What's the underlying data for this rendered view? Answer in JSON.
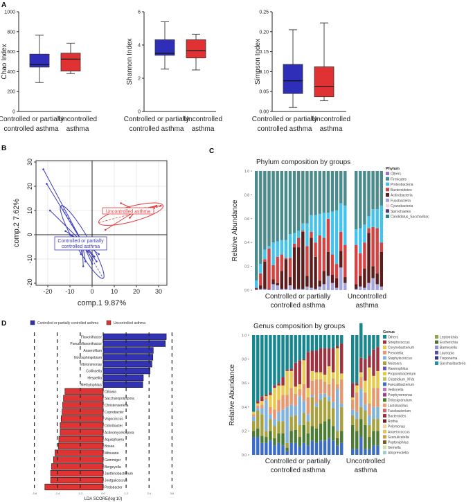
{
  "panel_letters": [
    "A",
    "B",
    "C",
    "D"
  ],
  "chart_data": [
    {
      "id": "chao",
      "type": "boxplot",
      "ylabel": "Chao Index",
      "ylim": [
        0,
        1000
      ],
      "yticks": [
        "0",
        "200",
        "400",
        "600",
        "800",
        "1000"
      ],
      "yticks_values": [
        0,
        200,
        400,
        600,
        800,
        1000
      ],
      "categories": [
        [
          "Controlled or partially",
          "controlled asthma"
        ],
        [
          "Uncontrolled",
          "asthma"
        ]
      ],
      "boxes": [
        {
          "min": 290,
          "q1": 445,
          "median": 470,
          "q3": 575,
          "max": 765,
          "color": "#2e2eb8"
        },
        {
          "min": 380,
          "q1": 405,
          "median": 525,
          "q3": 585,
          "max": 685,
          "color": "#e03232"
        }
      ]
    },
    {
      "id": "shannon",
      "type": "boxplot",
      "ylabel": "Shannon Index",
      "ylim": [
        0,
        6
      ],
      "yticks": [
        "0",
        "2",
        "4",
        "6"
      ],
      "yticks_values": [
        0,
        2,
        4,
        6
      ],
      "categories": [
        [
          "Controlled or partially",
          "controlled asthma"
        ],
        [
          "Uncontrolled",
          "asthma"
        ]
      ],
      "boxes": [
        {
          "min": 2.55,
          "q1": 3.38,
          "median": 3.5,
          "q3": 4.32,
          "max": 5.4,
          "color": "#2e2eb8"
        },
        {
          "min": 2.5,
          "q1": 3.22,
          "median": 3.65,
          "q3": 4.32,
          "max": 4.65,
          "color": "#e03232"
        }
      ]
    },
    {
      "id": "simpson",
      "type": "boxplot",
      "ylabel": "Simpson Index",
      "ylim": [
        0,
        0.25
      ],
      "yticks": [
        "0.00",
        "0.05",
        "0.10",
        "0.15",
        "0.20",
        "0.25"
      ],
      "yticks_values": [
        0,
        0.05,
        0.1,
        0.15,
        0.2,
        0.25
      ],
      "categories": [
        [
          "Controlled or partially",
          "controlled asthma"
        ],
        [
          "Uncontrolled",
          "asthma"
        ]
      ],
      "boxes": [
        {
          "min": 0.01,
          "q1": 0.045,
          "median": 0.077,
          "q3": 0.118,
          "max": 0.205,
          "color": "#2e2eb8"
        },
        {
          "min": 0.027,
          "q1": 0.037,
          "median": 0.063,
          "q3": 0.112,
          "max": 0.222,
          "color": "#e03232"
        }
      ]
    },
    {
      "id": "pca",
      "type": "scatter",
      "xlabel": "comp.1 9.87%",
      "ylabel": "comp.2 7.62%",
      "xlim": [
        -26,
        34
      ],
      "ylim": [
        -21,
        31
      ],
      "xticks": [
        "-20",
        "-10",
        "0",
        "10",
        "20",
        "30"
      ],
      "xticks_values": [
        -20,
        -10,
        0,
        10,
        20,
        30
      ],
      "yticks": [
        "-20",
        "-10",
        "0",
        "10",
        "20",
        "30"
      ],
      "yticks_values": [
        -20,
        -10,
        0,
        10,
        20,
        30
      ],
      "grid": true,
      "groups": [
        {
          "name": "Controlled or partially controlled asthma",
          "label_lines": [
            "Controlled or partially",
            "controlled asthma"
          ],
          "color": "#3a3ac0",
          "centroid": [
            -4.5,
            -3
          ],
          "points": [
            [
              -22,
              27
            ],
            [
              -20.5,
              21
            ],
            [
              -19,
              10
            ],
            [
              -12,
              1.5
            ],
            [
              -10,
              0
            ],
            [
              -8,
              -4
            ],
            [
              -6,
              -5
            ],
            [
              -5,
              -8
            ],
            [
              -3,
              -11
            ],
            [
              -2,
              -7
            ],
            [
              -1,
              -6
            ],
            [
              0,
              -10
            ],
            [
              0,
              -12
            ],
            [
              1,
              -9
            ],
            [
              2,
              -11
            ],
            [
              3,
              -8
            ],
            [
              -4,
              -13
            ],
            [
              -13,
              -2
            ]
          ]
        },
        {
          "name": "Uncontrolled asthma",
          "label_lines": [
            "Uncontrolled asthma"
          ],
          "color": "#e03a3a",
          "centroid": [
            20,
            10
          ],
          "points": [
            [
              6,
              2
            ],
            [
              10,
              9
            ],
            [
              12,
              9
            ],
            [
              13,
              13
            ],
            [
              17,
              7
            ],
            [
              24,
              11
            ],
            [
              28,
              11
            ],
            [
              29,
              12
            ],
            [
              31,
              12
            ]
          ]
        }
      ]
    },
    {
      "id": "phylum",
      "type": "stacked-bar",
      "title": "Phylum composition by groups",
      "ylabel": "Relative Abundance",
      "ylim": [
        0,
        1
      ],
      "yticks": [
        "0.0",
        "0.2",
        "0.4",
        "0.6",
        "0.8",
        "1.0"
      ],
      "yticks_values": [
        0,
        0.2,
        0.4,
        0.6,
        0.8,
        1.0
      ],
      "group_labels": [
        [
          "Controlled or partially",
          "controlled asthma"
        ],
        [
          "Uncontrolled",
          "asthma"
        ]
      ],
      "group_sizes": [
        22,
        7
      ],
      "legend_title": "Phylum",
      "legend": [
        {
          "name": "Others",
          "color": "#9b72dc"
        },
        {
          "name": "Firmicutes",
          "color": "#4b8b8b"
        },
        {
          "name": "Proteobacteria",
          "color": "#44c4ec"
        },
        {
          "name": "Bacteroidetes",
          "color": "#d24444"
        },
        {
          "name": "Actinobacteria",
          "color": "#5c1c1c"
        },
        {
          "name": "Fusobacteria",
          "color": "#a4a4dc"
        },
        {
          "name": "Cyanobacteria",
          "color": "#f8d2e0"
        },
        {
          "name": "Spirochaetes",
          "color": "#4c3c92"
        },
        {
          "name": "Candidatus_Saccharibac",
          "color": "#218292"
        }
      ],
      "series": [
        {
          "name": "Fusobacteria",
          "values": [
            0.005,
            0.01,
            0.01,
            0.005,
            0.05,
            0.04,
            0.01,
            0.01,
            0.04,
            0.01,
            0.01,
            0.01,
            0.03,
            0.02,
            0.01,
            0.03,
            0.05,
            0.12,
            0.06,
            0.02,
            0.19,
            0.06,
            0.01,
            0.03,
            0.02,
            0.06,
            0.1,
            0.05,
            0.03
          ]
        },
        {
          "name": "Actinobacteria",
          "values": [
            0.01,
            0.03,
            0.23,
            0.005,
            0.04,
            0.02,
            0.15,
            0.25,
            0.07,
            0.35,
            0.35,
            0.48,
            0.09,
            0.42,
            0.27,
            0.05,
            0.11,
            0.2,
            0.07,
            0.08,
            0.14,
            0.05,
            0.04,
            0.09,
            0.16,
            0.42,
            0.1,
            0.09,
            0.29
          ]
        },
        {
          "name": "Bacteroidetes",
          "values": [
            0.005,
            0.1,
            0.02,
            0.34,
            0.12,
            0.22,
            0.14,
            0.01,
            0.16,
            0.03,
            0.08,
            0.01,
            0.25,
            0.05,
            0.12,
            0.38,
            0.28,
            0.28,
            0.17,
            0.12,
            0.16,
            0.27,
            0.33,
            0.19,
            0.22,
            0.04,
            0.33,
            0.38,
            0.08
          ]
        },
        {
          "name": "Proteobacteria",
          "values": [
            0.06,
            0.08,
            0.08,
            0.02,
            0.19,
            0.13,
            0.12,
            0.15,
            0.2,
            0.09,
            0.06,
            0.06,
            0.19,
            0.14,
            0.23,
            0.18,
            0.21,
            0.05,
            0.36,
            0.45,
            0.24,
            0.33,
            0.13,
            0.21,
            0.15,
            0.1,
            0.15,
            0.16,
            0.31
          ]
        },
        {
          "name": "Firmicutes",
          "values": [
            0.92,
            0.78,
            0.66,
            0.63,
            0.6,
            0.59,
            0.58,
            0.58,
            0.53,
            0.52,
            0.5,
            0.44,
            0.44,
            0.37,
            0.37,
            0.36,
            0.35,
            0.35,
            0.34,
            0.33,
            0.27,
            0.29,
            0.49,
            0.48,
            0.45,
            0.38,
            0.32,
            0.32,
            0.29
          ]
        }
      ]
    },
    {
      "id": "genus",
      "type": "stacked-bar",
      "title": "Genus composition by groups",
      "ylabel": "Relative Abundance",
      "ylim": [
        0,
        1
      ],
      "yticks": [
        "0.0",
        "0.2",
        "0.4",
        "0.6",
        "0.8",
        "1.0"
      ],
      "yticks_values": [
        0,
        0.2,
        0.4,
        0.6,
        0.8,
        1.0
      ],
      "group_labels": [
        [
          "Controlled or partially",
          "controlled asthma"
        ],
        [
          "Uncontrolled",
          "asthma"
        ]
      ],
      "group_sizes": [
        22,
        7
      ],
      "legend_title": "Genus",
      "legend": [
        {
          "name": "Others",
          "color": "#16878f"
        },
        {
          "name": "Streptococcus",
          "color": "#a2303e"
        },
        {
          "name": "Corynebacterium",
          "color": "#e8ca4c"
        },
        {
          "name": "Prevotella",
          "color": "#ea966c"
        },
        {
          "name": "Staphylococcus",
          "color": "#80b2de"
        },
        {
          "name": "Neissera",
          "color": "#a9a23c"
        },
        {
          "name": "Haemophilus",
          "color": "#6c50b2"
        },
        {
          "name": "Propionibacterium",
          "color": "#f4c432"
        },
        {
          "name": "Clostridium_XIVa",
          "color": "#bac25c"
        },
        {
          "name": "Faecalibacterium",
          "color": "#3c6cca"
        },
        {
          "name": "Veillonella",
          "color": "#c272c2"
        },
        {
          "name": "Porphyromonas",
          "color": "#9c3c8c"
        },
        {
          "name": "Dolosigranulum",
          "color": "#4c7c32"
        },
        {
          "name": "Lactobacillus",
          "color": "#ea9c72"
        },
        {
          "name": "Fusobacterium",
          "color": "#da6262"
        },
        {
          "name": "Bacteroides",
          "color": "#a23242"
        },
        {
          "name": "Rothia",
          "color": "#6c2222"
        },
        {
          "name": "Pelomonas",
          "color": "#f2d2a2"
        },
        {
          "name": "Anaerococcus",
          "color": "#e2c262"
        },
        {
          "name": "Granulicatella",
          "color": "#c2a242"
        },
        {
          "name": "Peptoniphilus",
          "color": "#7c5c22"
        },
        {
          "name": "Gemella",
          "color": "#cae2a2"
        },
        {
          "name": "Alloprevotella",
          "color": "#a2caca"
        },
        {
          "name": "Leptotrichia",
          "color": "#92a252"
        },
        {
          "name": "Escherichia",
          "color": "#527232"
        },
        {
          "name": "Barnesiella",
          "color": "#9292d2"
        },
        {
          "name": "Lautropia",
          "color": "#5252a2"
        },
        {
          "name": "Treponema",
          "color": "#423282"
        },
        {
          "name": "Saccharibacteria",
          "color": "#2292a2"
        }
      ],
      "series": [
        {
          "name": "Faecalibacterium",
          "values": [
            0.15,
            0.15,
            0.1,
            0.1,
            0.12,
            0.08,
            0.1,
            0.08,
            0.03,
            0.1,
            0.1,
            0.07,
            0.1,
            0.08,
            0.12,
            0.1,
            0.12,
            0.12,
            0.14,
            0.12,
            0.08,
            0.1,
            0.05,
            0.05,
            0.15,
            0.05,
            0.05,
            0.08,
            0.08
          ]
        },
        {
          "name": "Dolosigranulum",
          "values": [
            0.05,
            0.07,
            0.06,
            0.05,
            0.08,
            0.06,
            0.08,
            0.1,
            0.03,
            0.1,
            0.11,
            0.08,
            0.15,
            0.1,
            0.12,
            0.12,
            0.14,
            0.16,
            0.16,
            0.12,
            0.06,
            0.1,
            0.2,
            0.15,
            0.15,
            0.2,
            0.1,
            0.12,
            0.12
          ]
        },
        {
          "name": "Neissera",
          "values": [
            0.08,
            0.15,
            0.18,
            0.05,
            0.1,
            0.1,
            0.1,
            0.1,
            0.04,
            0.12,
            0.12,
            0.1,
            0.1,
            0.1,
            0.24,
            0.18,
            0.2,
            0.2,
            0.15,
            0.15,
            0.06,
            0.2,
            0.08,
            0.1,
            0.1,
            0.12,
            0.1,
            0.1,
            0.1
          ]
        },
        {
          "name": "Staphylococcus",
          "values": [
            0.04,
            0.02,
            0.05,
            0.26,
            0.04,
            0.06,
            0.08,
            0.1,
            0.3,
            0.1,
            0.08,
            0.24,
            0.1,
            0.06,
            0.02,
            0.03,
            0.05,
            0.03,
            0.04,
            0.05,
            0.35,
            0.03,
            0.05,
            0.06,
            0.15,
            0.05,
            0.08,
            0.1,
            0.1
          ]
        },
        {
          "name": "Prevotella",
          "values": [
            0.02,
            0.02,
            0.03,
            0.02,
            0.06,
            0.08,
            0.1,
            0.12,
            0.1,
            0.14,
            0.1,
            0.06,
            0.14,
            0.14,
            0.12,
            0.2,
            0.12,
            0.1,
            0.1,
            0.2,
            0.04,
            0.2,
            0.08,
            0.16,
            0.1,
            0.1,
            0.1,
            0.16,
            0.16
          ]
        },
        {
          "name": "Corynebacterium",
          "values": [
            0.02,
            0.02,
            0.03,
            0.01,
            0.1,
            0.18,
            0.12,
            0.08,
            0.2,
            0.14,
            0.06,
            0.04,
            0.2,
            0.08,
            0.08,
            0.06,
            0.06,
            0.06,
            0.15,
            0.05,
            0.3,
            0.05,
            0.02,
            0.06,
            0.04,
            0.1,
            0.3,
            0.1,
            0.14
          ]
        },
        {
          "name": "Streptococcus",
          "values": [
            0.0,
            0.02,
            0.04,
            0.01,
            0.02,
            0.02,
            0.02,
            0.07,
            0.01,
            0.02,
            0.2,
            0.2,
            0.01,
            0.3,
            0.17,
            0.18,
            0.2,
            0.22,
            0.15,
            0.2,
            0.02,
            0.25,
            0.12,
            0.02,
            0.12,
            0.18,
            0.1,
            0.22,
            0.2
          ]
        },
        {
          "name": "Others",
          "values": [
            0.64,
            0.55,
            0.51,
            0.5,
            0.48,
            0.42,
            0.4,
            0.35,
            0.29,
            0.28,
            0.23,
            0.21,
            0.2,
            0.14,
            0.13,
            0.13,
            0.11,
            0.11,
            0.11,
            0.11,
            0.09,
            0.07,
            0.4,
            0.4,
            0.29,
            0.2,
            0.17,
            0.12,
            0.1
          ]
        }
      ]
    },
    {
      "id": "lefse",
      "type": "bar",
      "orientation": "horizontal",
      "xlabel": "LDA SCORE(log 10)",
      "xlim": [
        -3.6,
        3.6
      ],
      "xticks": [
        "-3.6",
        "-2.4",
        "-1.2",
        "0.0",
        "1.2",
        "2.4",
        "3.6"
      ],
      "xticks_values": [
        -3.6,
        -2.4,
        -1.2,
        0,
        1.2,
        2.4,
        3.6
      ],
      "legend": [
        {
          "name": "Controlled or partially controlled asthma",
          "color": "#3232b4"
        },
        {
          "name": "Uncontrolled asthma",
          "color": "#e03434"
        }
      ],
      "categories": [
        "Flavonifractor",
        "Pseudoflavonifractor",
        "Anaerofilum",
        "Novosphingobium",
        "Vibrionimonas",
        "Collinsella",
        "Hespellia",
        "Methylophilus",
        "Ottowia",
        "Saccharopolyspora",
        "Christensenella",
        "Coprobacter",
        "Vagococcus",
        "Odoribacter",
        "Actinomycetospora",
        "Aquisphaera",
        "Bosea",
        "Mitsuaria",
        "Gemmiger",
        "Bergeyella",
        "Janthinobacterium",
        "Jeotgalicoccus",
        "Pedobacter"
      ],
      "values": [
        3.3,
        3.25,
        2.62,
        2.6,
        2.55,
        2.45,
        2.1,
        2.07,
        -2.0,
        -2.08,
        -2.12,
        -2.15,
        -2.2,
        -2.25,
        -2.25,
        -2.32,
        -2.35,
        -2.52,
        -2.6,
        -2.7,
        -2.75,
        -2.75,
        -3.05
      ]
    }
  ]
}
